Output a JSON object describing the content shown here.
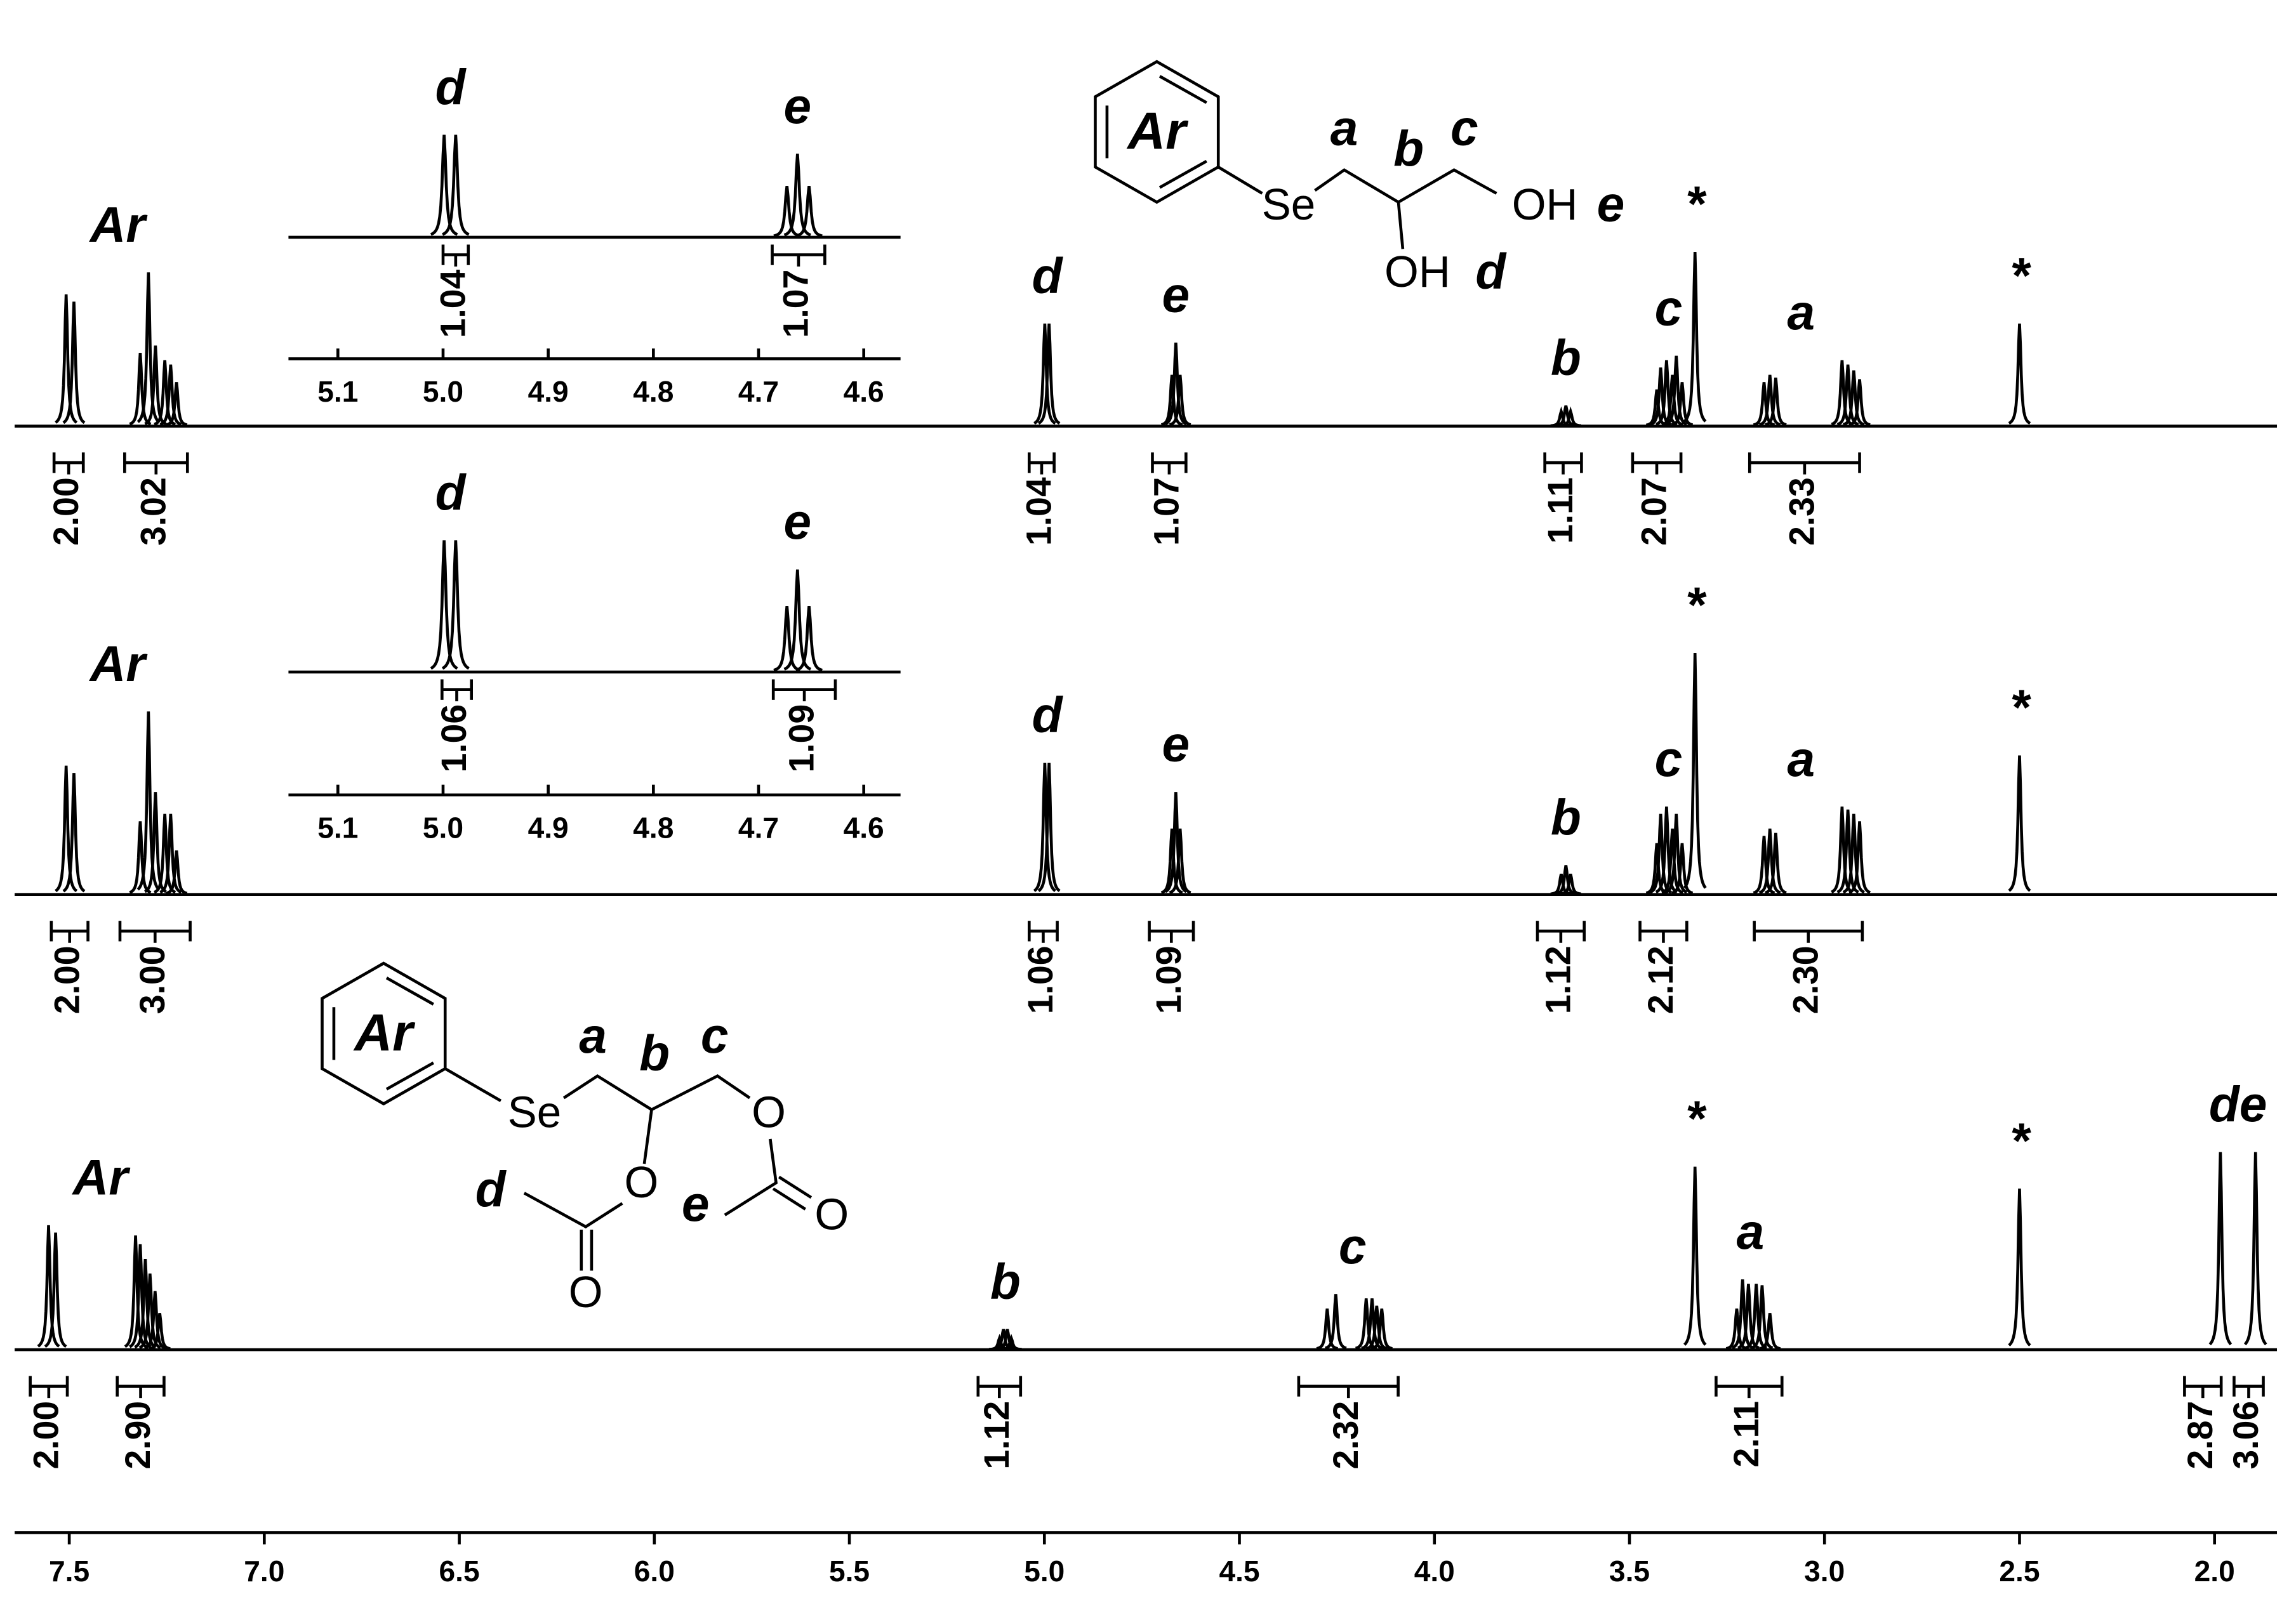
{
  "chart_data": {
    "type": "nmr",
    "color": "#000000",
    "xlim": [
      7.64,
      1.84
    ],
    "xticks": [
      7.5,
      {
        "value": 7,
        "label": "7.0"
      },
      6.5,
      {
        "value": 6,
        "label": "6.0"
      },
      5.5,
      {
        "value": 5,
        "label": "5.0"
      },
      4.5,
      {
        "value": 4,
        "label": "4.0"
      },
      3.5,
      {
        "value": 3,
        "label": "3.0"
      },
      2.5,
      {
        "value": 2,
        "label": "2.0"
      }
    ],
    "inset_xlim": [
      5.147,
      4.565
    ],
    "inset_xticks": [
      5.1,
      {
        "value": 5,
        "label": "5.0"
      },
      4.9,
      4.8,
      4.7,
      4.6
    ],
    "spectra": [
      {
        "peaks": [
          [
            7.508,
            90
          ],
          [
            7.488,
            85
          ],
          [
            7.318,
            50
          ],
          [
            7.297,
            105
          ],
          [
            7.279,
            55
          ],
          [
            7.255,
            45
          ],
          [
            7.24,
            42
          ],
          [
            7.225,
            30
          ],
          [
            4.999,
            70
          ],
          [
            4.988,
            70
          ],
          [
            4.673,
            35
          ],
          [
            4.663,
            57
          ],
          [
            4.652,
            35
          ],
          [
            3.675,
            10
          ],
          [
            3.663,
            14
          ],
          [
            3.651,
            10
          ],
          [
            3.43,
            25
          ],
          [
            3.42,
            40
          ],
          [
            3.405,
            45
          ],
          [
            3.39,
            35
          ],
          [
            3.38,
            48
          ],
          [
            3.365,
            30
          ],
          [
            3.332,
            119
          ],
          [
            3.155,
            30
          ],
          [
            3.14,
            35
          ],
          [
            3.125,
            33
          ],
          [
            2.955,
            45
          ],
          [
            2.94,
            42
          ],
          [
            2.925,
            38
          ],
          [
            2.91,
            32
          ],
          [
            2.5,
            70
          ]
        ],
        "labels": [
          {
            "text": "Ar",
            "ppm": 7.376
          },
          {
            "text": "d",
            "ppm": 4.993
          },
          {
            "text": "e",
            "ppm": 4.663
          },
          {
            "text": "b",
            "ppm": 3.663
          },
          {
            "text": "c",
            "ppm": 3.4
          },
          {
            "text": "*",
            "ppm": 3.332
          },
          {
            "text": "a",
            "ppm": 3.06
          },
          {
            "text": "*",
            "ppm": 2.5
          }
        ],
        "integrals": [
          {
            "label": "2.00",
            "from": 7.539,
            "to": 7.464
          },
          {
            "label": "3.02",
            "from": 7.358,
            "to": 7.197
          },
          {
            "label": "1.04",
            "from": 5.039,
            "to": 4.975
          },
          {
            "label": "1.07",
            "from": 4.723,
            "to": 4.637
          },
          {
            "label": "1.11",
            "from": 3.717,
            "to": 3.623
          },
          {
            "label": "2.07",
            "from": 3.492,
            "to": 3.368
          },
          {
            "label": "2.33",
            "from": 3.192,
            "to": 2.91
          }
        ],
        "inset": {
          "labels": [
            {
              "text": "d",
              "ppm": 4.993
            },
            {
              "text": "e",
              "ppm": 4.663
            }
          ],
          "integrals": [
            {
              "label": "1.04",
              "from": 5.0,
              "to": 4.976
            },
            {
              "label": "1.07",
              "from": 4.687,
              "to": 4.637
            }
          ]
        }
      },
      {
        "peaks": [
          [
            7.508,
            88
          ],
          [
            7.488,
            83
          ],
          [
            7.318,
            50
          ],
          [
            7.297,
            125
          ],
          [
            7.279,
            70
          ],
          [
            7.255,
            55
          ],
          [
            7.24,
            55
          ],
          [
            7.225,
            30
          ],
          [
            4.999,
            90
          ],
          [
            4.988,
            90
          ],
          [
            4.673,
            45
          ],
          [
            4.663,
            70
          ],
          [
            4.652,
            45
          ],
          [
            3.675,
            14
          ],
          [
            3.663,
            20
          ],
          [
            3.651,
            14
          ],
          [
            3.43,
            35
          ],
          [
            3.42,
            55
          ],
          [
            3.405,
            60
          ],
          [
            3.39,
            45
          ],
          [
            3.38,
            55
          ],
          [
            3.365,
            35
          ],
          [
            3.332,
            165
          ],
          [
            3.155,
            40
          ],
          [
            3.14,
            45
          ],
          [
            3.125,
            42
          ],
          [
            2.955,
            60
          ],
          [
            2.94,
            58
          ],
          [
            2.925,
            55
          ],
          [
            2.91,
            50
          ],
          [
            2.5,
            95
          ]
        ],
        "labels": [
          {
            "text": "Ar",
            "ppm": 7.376
          },
          {
            "text": "d",
            "ppm": 4.993
          },
          {
            "text": "e",
            "ppm": 4.663
          },
          {
            "text": "b",
            "ppm": 3.663
          },
          {
            "text": "c",
            "ppm": 3.4
          },
          {
            "text": "*",
            "ppm": 3.332
          },
          {
            "text": "a",
            "ppm": 3.06
          },
          {
            "text": "*",
            "ppm": 2.5
          }
        ],
        "integrals": [
          {
            "label": "2.00",
            "from": 7.546,
            "to": 7.452
          },
          {
            "label": "3.00",
            "from": 7.37,
            "to": 7.19
          },
          {
            "label": "1.06",
            "from": 5.039,
            "to": 4.967
          },
          {
            "label": "1.09",
            "from": 4.731,
            "to": 4.618
          },
          {
            "label": "1.12",
            "from": 3.736,
            "to": 3.616
          },
          {
            "label": "2.12",
            "from": 3.473,
            "to": 3.353
          },
          {
            "label": "2.30",
            "from": 3.18,
            "to": 2.903
          }
        ],
        "inset": {
          "labels": [
            {
              "text": "d",
              "ppm": 4.993
            },
            {
              "text": "e",
              "ppm": 4.663
            }
          ],
          "integrals": [
            {
              "label": "1.06",
              "from": 5.001,
              "to": 4.973
            },
            {
              "label": "1.09",
              "from": 4.686,
              "to": 4.627
            }
          ]
        }
      },
      {
        "peaks": [
          [
            7.553,
            85
          ],
          [
            7.535,
            80
          ],
          [
            7.33,
            78
          ],
          [
            7.318,
            72
          ],
          [
            7.305,
            62
          ],
          [
            7.293,
            52
          ],
          [
            7.28,
            40
          ],
          [
            7.268,
            25
          ],
          [
            5.115,
            8
          ],
          [
            5.105,
            14
          ],
          [
            5.095,
            14
          ],
          [
            5.085,
            8
          ],
          [
            4.275,
            28
          ],
          [
            4.253,
            38
          ],
          [
            4.175,
            35
          ],
          [
            4.16,
            35
          ],
          [
            4.148,
            30
          ],
          [
            4.135,
            28
          ],
          [
            3.332,
            125
          ],
          [
            3.225,
            28
          ],
          [
            3.21,
            48
          ],
          [
            3.195,
            45
          ],
          [
            3.175,
            45
          ],
          [
            3.16,
            44
          ],
          [
            3.14,
            25
          ],
          [
            2.5,
            110
          ],
          [
            1.985,
            135
          ],
          [
            1.895,
            135
          ]
        ],
        "labels": [
          {
            "text": "Ar",
            "ppm": 7.42
          },
          {
            "text": "b",
            "ppm": 5.1
          },
          {
            "text": "c",
            "ppm": 4.21
          },
          {
            "text": "*",
            "ppm": 3.332
          },
          {
            "text": "a",
            "ppm": 3.19
          },
          {
            "text": "*",
            "ppm": 2.5
          },
          {
            "text": "de",
            "ppm": 1.94
          }
        ],
        "integrals": [
          {
            "label": "2.00",
            "from": 7.6,
            "to": 7.505
          },
          {
            "label": "2.90",
            "from": 7.377,
            "to": 7.257
          },
          {
            "label": "1.12",
            "from": 5.17,
            "to": 5.061
          },
          {
            "label": "2.32",
            "from": 4.348,
            "to": 4.093
          },
          {
            "label": "2.11",
            "from": 3.278,
            "to": 3.109
          },
          {
            "label": "2.87",
            "from": 2.077,
            "to": 1.983
          },
          {
            "label": "3.06",
            "from": 1.95,
            "to": 1.875
          }
        ]
      }
    ]
  },
  "structures": [
    {
      "aryl": "Ar",
      "selenium": "Se",
      "hydroxyls": [
        "OH",
        "OH"
      ],
      "positions": [
        "a",
        "b",
        "c",
        "d",
        "e"
      ]
    },
    {
      "aryl": "Ar",
      "selenium": "Se",
      "oxygens": [
        "O",
        "O",
        "O",
        "O"
      ],
      "positions": [
        "a",
        "b",
        "c",
        "d",
        "e"
      ]
    }
  ]
}
